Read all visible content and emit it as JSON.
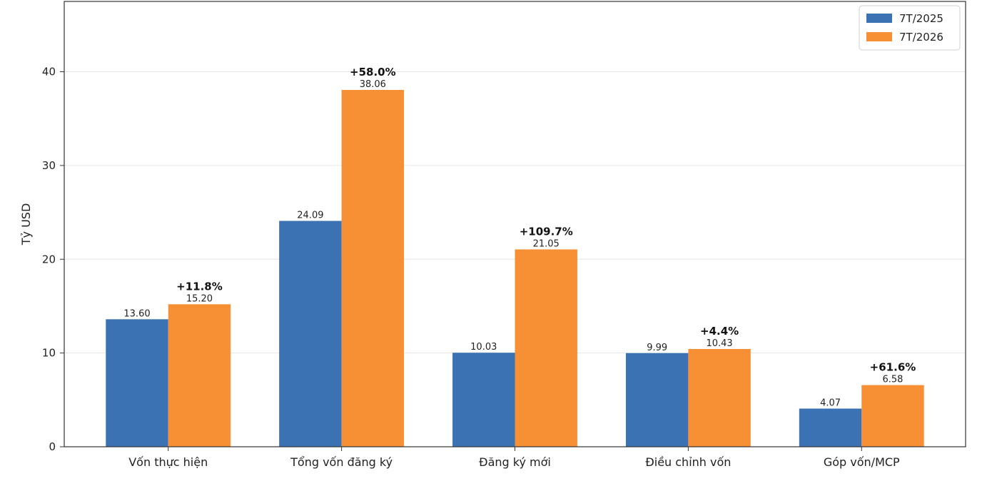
{
  "chart_data": {
    "type": "bar",
    "title": "",
    "xlabel": "",
    "ylabel": "Tỷ USD",
    "ylim": [
      0,
      47.5
    ],
    "yticks": [
      0,
      10,
      20,
      30,
      40
    ],
    "grid": true,
    "legend_position": "top-right",
    "categories": [
      "Vốn thực hiện",
      "Tổng vốn đăng ký",
      "Đăng ký mới",
      "Điều chỉnh vốn",
      "Góp vốn/MCP"
    ],
    "series": [
      {
        "name": "7T/2025",
        "color": "#3a72b3",
        "values": [
          13.6,
          24.09,
          10.03,
          9.99,
          4.07
        ],
        "value_labels": [
          "13.60",
          "24.09",
          "10.03",
          "9.99",
          "4.07"
        ]
      },
      {
        "name": "7T/2026",
        "color": "#f78f34",
        "values": [
          15.2,
          38.06,
          21.05,
          10.43,
          6.58
        ],
        "value_labels": [
          "15.20",
          "38.06",
          "21.05",
          "10.43",
          "6.58"
        ]
      }
    ],
    "growth_labels": [
      "+11.8%",
      "+58.0%",
      "+109.7%",
      "+4.4%",
      "+61.6%"
    ]
  }
}
